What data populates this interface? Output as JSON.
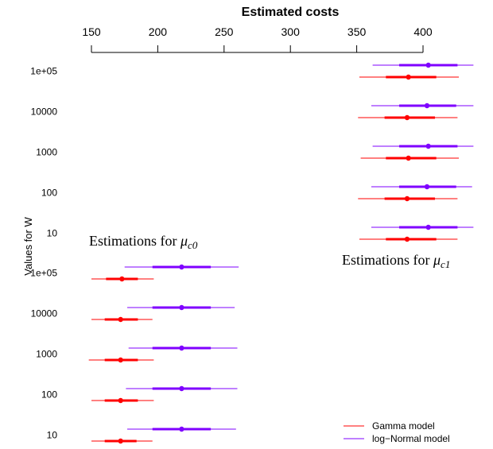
{
  "chart_data": {
    "type": "interval",
    "title": "Estimated costs",
    "ylabel": "Values for W",
    "xlim": [
      150,
      400
    ],
    "x_ticks": [
      150,
      200,
      250,
      300,
      350,
      400
    ],
    "x_tick_labels": [
      "150",
      "200",
      "250",
      "300",
      "350",
      "400"
    ],
    "panels": [
      {
        "name": "mu_c1",
        "annotation_prefix": "Estimations for ",
        "annotation_symbol": "μ",
        "annotation_subscript": "c1",
        "categories": [
          "1e+05",
          "10000",
          "1000",
          "100",
          "10"
        ],
        "series": [
          {
            "name": "log−Normal model",
            "color": "#7f00ff",
            "intervals": [
              {
                "w": "1e+05",
                "point": 404,
                "inner": [
                  382,
                  426
                ],
                "outer": [
                  362,
                  438
                ]
              },
              {
                "w": "10000",
                "point": 403,
                "inner": [
                  382,
                  425
                ],
                "outer": [
                  361,
                  438
                ]
              },
              {
                "w": "1000",
                "point": 404,
                "inner": [
                  382,
                  426
                ],
                "outer": [
                  362,
                  438
                ]
              },
              {
                "w": "100",
                "point": 403,
                "inner": [
                  382,
                  425
                ],
                "outer": [
                  361,
                  437
                ]
              },
              {
                "w": "10",
                "point": 404,
                "inner": [
                  382,
                  426
                ],
                "outer": [
                  361,
                  438
                ]
              }
            ]
          },
          {
            "name": "Gamma model",
            "color": "#ff0000",
            "intervals": [
              {
                "w": "1e+05",
                "point": 389,
                "inner": [
                  372,
                  410
                ],
                "outer": [
                  352,
                  427
                ]
              },
              {
                "w": "10000",
                "point": 388,
                "inner": [
                  371,
                  409
                ],
                "outer": [
                  351,
                  426
                ]
              },
              {
                "w": "1000",
                "point": 389,
                "inner": [
                  372,
                  410
                ],
                "outer": [
                  353,
                  427
                ]
              },
              {
                "w": "100",
                "point": 388,
                "inner": [
                  371,
                  409
                ],
                "outer": [
                  351,
                  426
                ]
              },
              {
                "w": "10",
                "point": 388,
                "inner": [
                  372,
                  410
                ],
                "outer": [
                  352,
                  426
                ]
              }
            ]
          }
        ]
      },
      {
        "name": "mu_c0",
        "annotation_prefix": "Estimations for ",
        "annotation_symbol": "μ",
        "annotation_subscript": "c0",
        "categories": [
          "1e+05",
          "10000",
          "1000",
          "100",
          "10"
        ],
        "series": [
          {
            "name": "log−Normal model",
            "color": "#7f00ff",
            "intervals": [
              {
                "w": "1e+05",
                "point": 218,
                "inner": [
                  196,
                  240
                ],
                "outer": [
                  175,
                  261
                ]
              },
              {
                "w": "10000",
                "point": 218,
                "inner": [
                  196,
                  240
                ],
                "outer": [
                  177,
                  258
                ]
              },
              {
                "w": "1000",
                "point": 218,
                "inner": [
                  196,
                  240
                ],
                "outer": [
                  178,
                  260
                ]
              },
              {
                "w": "100",
                "point": 218,
                "inner": [
                  196,
                  240
                ],
                "outer": [
                  176,
                  260
                ]
              },
              {
                "w": "10",
                "point": 218,
                "inner": [
                  196,
                  240
                ],
                "outer": [
                  177,
                  259
                ]
              }
            ]
          },
          {
            "name": "Gamma model",
            "color": "#ff0000",
            "intervals": [
              {
                "w": "1e+05",
                "point": 173,
                "inner": [
                  161,
                  185
                ],
                "outer": [
                  150,
                  197
                ]
              },
              {
                "w": "10000",
                "point": 172,
                "inner": [
                  160,
                  185
                ],
                "outer": [
                  150,
                  196
                ]
              },
              {
                "w": "1000",
                "point": 172,
                "inner": [
                  160,
                  185
                ],
                "outer": [
                  148,
                  197
                ]
              },
              {
                "w": "100",
                "point": 172,
                "inner": [
                  160,
                  185
                ],
                "outer": [
                  150,
                  197
                ]
              },
              {
                "w": "10",
                "point": 172,
                "inner": [
                  160,
                  184
                ],
                "outer": [
                  150,
                  196
                ]
              }
            ]
          }
        ]
      }
    ],
    "legend": {
      "position": "bottom-right",
      "entries": [
        {
          "label": "Gamma model",
          "color": "#ff0000"
        },
        {
          "label": "log−Normal model",
          "color": "#7f00ff"
        }
      ]
    }
  }
}
